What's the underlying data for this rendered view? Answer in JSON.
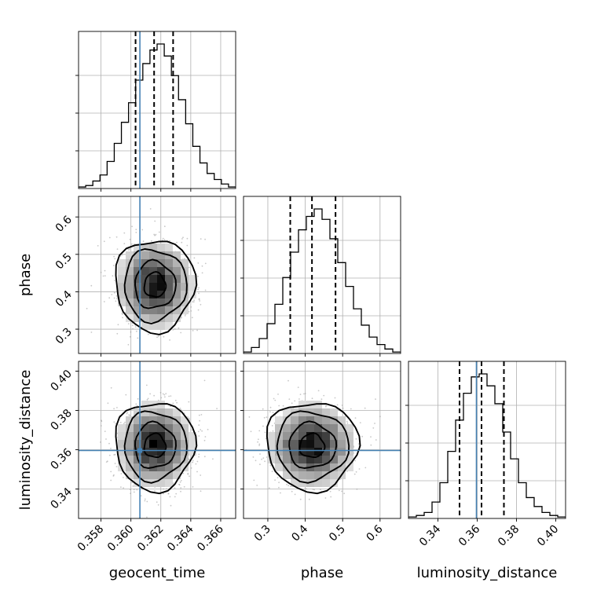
{
  "chart_data": {
    "type": "corner",
    "parameters": [
      "geocent_time",
      "phase",
      "luminosity_distance"
    ],
    "ranges": [
      [
        0.3565,
        0.367
      ],
      [
        0.235,
        0.655
      ],
      [
        0.325,
        0.405
      ]
    ],
    "ticks": [
      [
        0.358,
        0.36,
        0.362,
        0.364,
        0.366
      ],
      [
        0.3,
        0.4,
        0.5,
        0.6
      ],
      [
        0.34,
        0.36,
        0.38,
        0.4
      ]
    ],
    "tick_labels": [
      [
        "0.358",
        "0.360",
        "0.362",
        "0.364",
        "0.366"
      ],
      [
        "0.3",
        "0.4",
        "0.5",
        "0.6"
      ],
      [
        "0.34",
        "0.36",
        "0.38",
        "0.40"
      ]
    ],
    "truths": {
      "geocent_time": 0.3606,
      "phase": null,
      "luminosity_distance": 0.3596
    },
    "quantiles": {
      "geocent_time": [
        0.36031,
        0.36155,
        0.36282
      ],
      "phase": [
        0.36,
        0.418,
        0.481
      ],
      "luminosity_distance": [
        0.351,
        0.3622,
        0.3736
      ]
    },
    "histograms": {
      "geocent_time": [
        1,
        2,
        5,
        9,
        18,
        30,
        44,
        57,
        72,
        83,
        92,
        96,
        88,
        75,
        59,
        43,
        28,
        17,
        10,
        6,
        3,
        1
      ],
      "phase": [
        1,
        4,
        10,
        20,
        33,
        51,
        68,
        83,
        92,
        97,
        90,
        77,
        61,
        45,
        30,
        19,
        11,
        6,
        3,
        1
      ],
      "luminosity_distance": [
        1,
        2,
        4,
        11,
        24,
        45,
        66,
        84,
        95,
        97,
        89,
        77,
        58,
        40,
        24,
        14,
        8,
        4,
        2,
        1
      ]
    },
    "centers": {
      "geocent_time": 0.3616,
      "phase": 0.418,
      "luminosity_distance": 0.362
    },
    "sigmas": {
      "geocent_time": 0.0013,
      "phase": 0.06,
      "luminosity_distance": 0.011
    },
    "truth_color": "#4682b4",
    "hist_color": "#000000",
    "grid": true
  }
}
